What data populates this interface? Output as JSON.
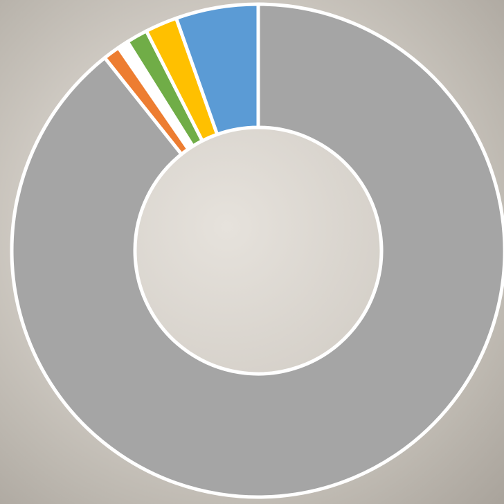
{
  "chart_data": {
    "type": "donut",
    "values": [
      89.3,
      1.1,
      0.7,
      1.4,
      2.1,
      5.4
    ],
    "colors": [
      "#a5a5a5",
      "#ed7d31",
      "#ffffff",
      "#70ad47",
      "#ffc000",
      "#5b9bd5"
    ]
  }
}
